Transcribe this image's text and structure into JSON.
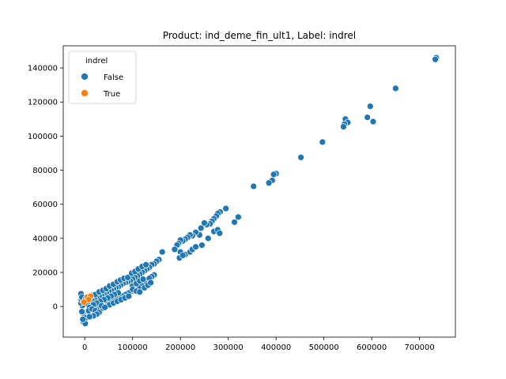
{
  "chart_data": {
    "type": "scatter",
    "title": "Product: ind_deme_fin_ult1, Label: indrel",
    "xlabel": "",
    "ylabel": "",
    "xlim": [
      -45000,
      775000
    ],
    "ylim": [
      -18000,
      153000
    ],
    "xticks": [
      0,
      100000,
      200000,
      300000,
      400000,
      500000,
      600000,
      700000
    ],
    "yticks": [
      0,
      20000,
      40000,
      60000,
      80000,
      100000,
      120000,
      140000
    ],
    "grid": false,
    "legend": {
      "title": "indrel",
      "placement": "upper-left",
      "entries": [
        {
          "label": "False",
          "color": "#1f77b4"
        },
        {
          "label": "True",
          "color": "#ff7f0e"
        }
      ]
    },
    "series": [
      {
        "name": "False",
        "color": "#1f77b4",
        "points": [
          [
            735000,
            146000
          ],
          [
            733000,
            145000
          ],
          [
            650000,
            128000
          ],
          [
            597000,
            117500
          ],
          [
            591000,
            111000
          ],
          [
            603000,
            108500
          ],
          [
            545000,
            110000
          ],
          [
            550000,
            108000
          ],
          [
            543000,
            107000
          ],
          [
            541000,
            105500
          ],
          [
            497000,
            96500
          ],
          [
            452000,
            87500
          ],
          [
            400000,
            78000
          ],
          [
            395000,
            77500
          ],
          [
            392000,
            74000
          ],
          [
            385000,
            72500
          ],
          [
            353000,
            70500
          ],
          [
            321000,
            52500
          ],
          [
            313000,
            49500
          ],
          [
            295000,
            57500
          ],
          [
            283000,
            55500
          ],
          [
            278000,
            54500
          ],
          [
            275000,
            53000
          ],
          [
            270000,
            51500
          ],
          [
            266000,
            50000
          ],
          [
            262000,
            48500
          ],
          [
            255000,
            48000
          ],
          [
            250000,
            49000
          ],
          [
            270000,
            44000
          ],
          [
            278000,
            45000
          ],
          [
            282000,
            43000
          ],
          [
            258000,
            40000
          ],
          [
            238000,
            43000
          ],
          [
            243000,
            46000
          ],
          [
            240000,
            42000
          ],
          [
            232000,
            43500
          ],
          [
            225000,
            41500
          ],
          [
            220000,
            42000
          ],
          [
            215000,
            40500
          ],
          [
            210000,
            39500
          ],
          [
            205000,
            38500
          ],
          [
            200000,
            39000
          ],
          [
            196000,
            37000
          ],
          [
            193000,
            36000
          ],
          [
            188000,
            33500
          ],
          [
            200000,
            32000
          ],
          [
            210000,
            30500
          ],
          [
            198000,
            28500
          ],
          [
            205000,
            30000
          ],
          [
            220000,
            32000
          ],
          [
            225000,
            33500
          ],
          [
            232000,
            35000
          ],
          [
            245000,
            36000
          ],
          [
            162000,
            32000
          ],
          [
            155000,
            27500
          ],
          [
            150000,
            26500
          ],
          [
            145000,
            25000
          ],
          [
            140000,
            24500
          ],
          [
            135000,
            23000
          ],
          [
            130000,
            22000
          ],
          [
            125000,
            21000
          ],
          [
            120000,
            20000
          ],
          [
            115000,
            19000
          ],
          [
            110000,
            18000
          ],
          [
            105000,
            17000
          ],
          [
            100000,
            16000
          ],
          [
            95000,
            15000
          ],
          [
            90000,
            14500
          ],
          [
            85000,
            14000
          ],
          [
            80000,
            13500
          ],
          [
            75000,
            12500
          ],
          [
            70000,
            11500
          ],
          [
            65000,
            11000
          ],
          [
            60000,
            10500
          ],
          [
            55000,
            9500
          ],
          [
            50000,
            9000
          ],
          [
            45000,
            8000
          ],
          [
            40000,
            7500
          ],
          [
            35000,
            6500
          ],
          [
            30000,
            6000
          ],
          [
            25000,
            5000
          ],
          [
            20000,
            4500
          ],
          [
            15000,
            3500
          ],
          [
            10000,
            3000
          ],
          [
            5000,
            2000
          ],
          [
            0,
            1500
          ],
          [
            -5000,
            500
          ],
          [
            145000,
            18500
          ],
          [
            140000,
            17500
          ],
          [
            135000,
            16500
          ],
          [
            125000,
            14000
          ],
          [
            118000,
            12500
          ],
          [
            112000,
            11000
          ],
          [
            105000,
            9500
          ],
          [
            98000,
            9000
          ],
          [
            92000,
            8000
          ],
          [
            85000,
            7000
          ],
          [
            80000,
            6000
          ],
          [
            72000,
            5500
          ],
          [
            65000,
            4500
          ],
          [
            58000,
            3500
          ],
          [
            50000,
            3000
          ],
          [
            42000,
            2000
          ],
          [
            35000,
            1000
          ],
          [
            28000,
            0
          ],
          [
            20000,
            -1000
          ],
          [
            12000,
            -2000
          ],
          [
            5000,
            -3000
          ],
          [
            0,
            -4000
          ],
          [
            -2000,
            -5000
          ],
          [
            0,
            -6000
          ],
          [
            2000,
            -7000
          ],
          [
            0,
            -8000
          ],
          [
            -3000,
            -9000
          ],
          [
            1000,
            -10000
          ],
          [
            3000,
            -6500
          ],
          [
            -4000,
            -7500
          ],
          [
            -6000,
            -3000
          ],
          [
            -8000,
            2000
          ],
          [
            -7000,
            4000
          ],
          [
            -5000,
            6000
          ],
          [
            -8000,
            7500
          ],
          [
            -3000,
            3000
          ],
          [
            -6000,
            5500
          ],
          [
            2000,
            4500
          ],
          [
            8000,
            5000
          ],
          [
            15000,
            6500
          ],
          [
            22000,
            7000
          ],
          [
            30000,
            8500
          ],
          [
            38000,
            9500
          ],
          [
            45000,
            10500
          ],
          [
            52000,
            12000
          ],
          [
            60000,
            13000
          ],
          [
            68000,
            14500
          ],
          [
            75000,
            15500
          ],
          [
            82000,
            16500
          ],
          [
            90000,
            17000
          ],
          [
            100000,
            12000
          ],
          [
            108000,
            13500
          ],
          [
            115000,
            15000
          ],
          [
            122000,
            16000
          ],
          [
            70000,
            8000
          ],
          [
            62000,
            7000
          ],
          [
            55000,
            6000
          ],
          [
            48000,
            5000
          ],
          [
            40000,
            4000
          ],
          [
            32000,
            3000
          ],
          [
            25000,
            2000
          ],
          [
            18000,
            1000
          ],
          [
            10000,
            -500
          ],
          [
            8000,
            -2500
          ],
          [
            15000,
            -1500
          ],
          [
            22000,
            -2500
          ],
          [
            30000,
            -3500
          ],
          [
            38000,
            -1000
          ],
          [
            45000,
            0
          ],
          [
            52000,
            1000
          ],
          [
            60000,
            2000
          ],
          [
            68000,
            3000
          ],
          [
            76000,
            4000
          ],
          [
            84000,
            5000
          ],
          [
            92000,
            6000
          ],
          [
            100000,
            10000
          ],
          [
            108000,
            9000
          ],
          [
            115000,
            8500
          ],
          [
            125000,
            11000
          ],
          [
            132000,
            12500
          ],
          [
            138000,
            14000
          ],
          [
            98000,
            19500
          ],
          [
            105000,
            20500
          ],
          [
            112000,
            22000
          ],
          [
            120000,
            23500
          ],
          [
            128000,
            24500
          ],
          [
            25000,
            -4500
          ],
          [
            18000,
            -5500
          ],
          [
            10000,
            -6000
          ],
          [
            35000,
            500
          ],
          [
            42000,
            -500
          ]
        ]
      },
      {
        "name": "True",
        "color": "#ff7f0e",
        "points": [
          [
            5000,
            5500
          ],
          [
            12000,
            6000
          ],
          [
            8000,
            4000
          ],
          [
            -2000,
            2500
          ]
        ]
      }
    ]
  }
}
